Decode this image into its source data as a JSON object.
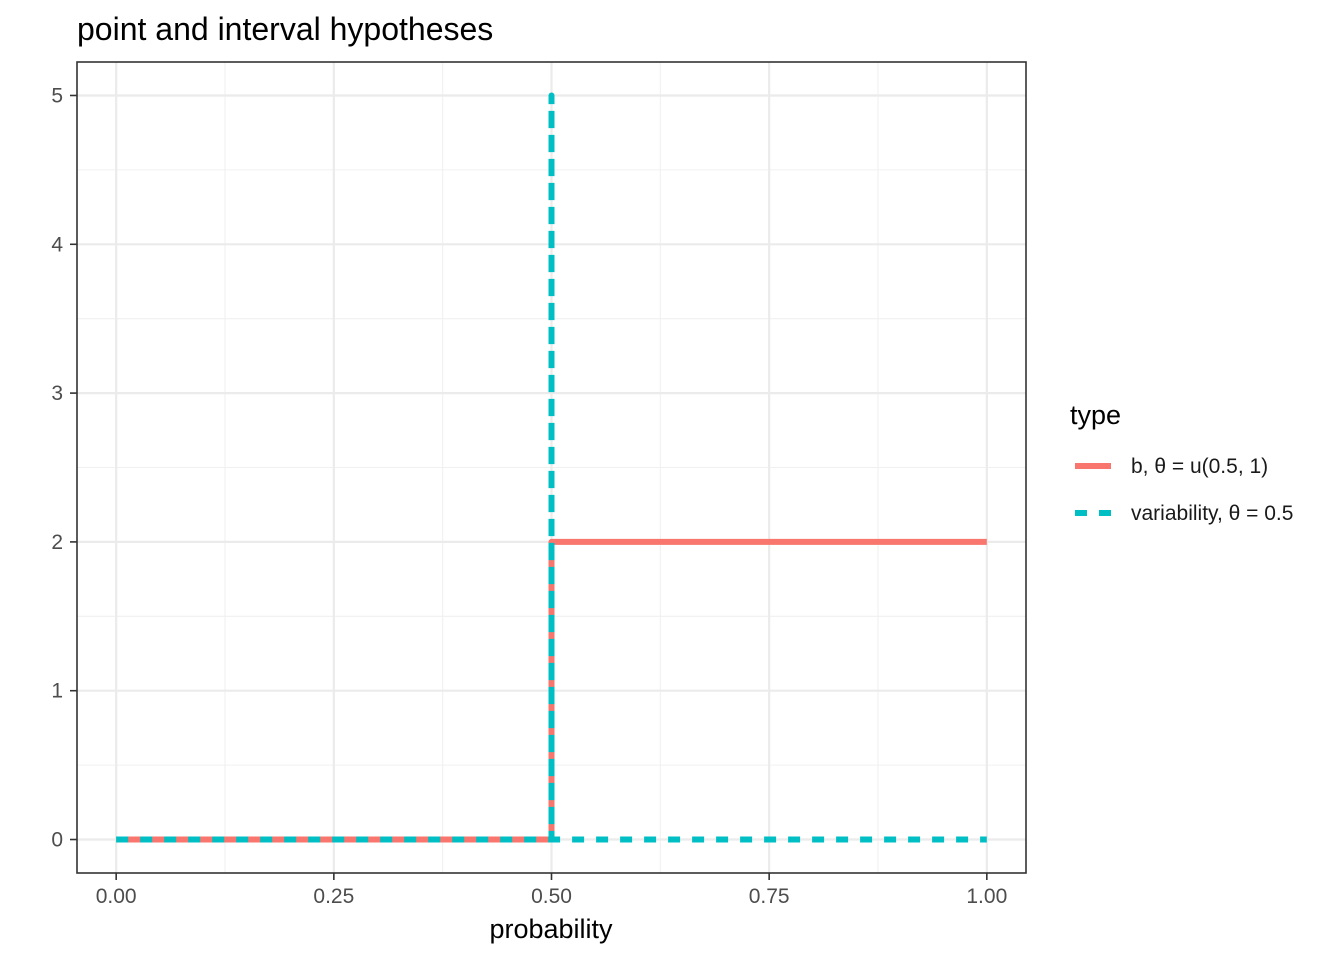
{
  "chart_data": {
    "type": "line",
    "title": "point and interval hypotheses",
    "xlabel": "probability",
    "ylabel": "",
    "xlim": [
      0,
      1
    ],
    "ylim": [
      0,
      5
    ],
    "x_ticks": [
      0,
      0.25,
      0.5,
      0.75,
      1
    ],
    "x_tick_labels": [
      "0.00",
      "0.25",
      "0.50",
      "0.75",
      "1.00"
    ],
    "y_ticks": [
      0,
      1,
      2,
      3,
      4,
      5
    ],
    "y_tick_labels": [
      "0",
      "1",
      "2",
      "3",
      "4",
      "5"
    ],
    "grid": true,
    "legend_title": "type",
    "legend_position": "right",
    "series": [
      {
        "name": "b, θ = u(0.5, 1)",
        "color": "#F8766D",
        "linestyle": "solid",
        "points": [
          [
            0,
            0
          ],
          [
            0.5,
            0
          ],
          [
            0.5,
            2
          ],
          [
            1,
            2
          ]
        ]
      },
      {
        "name": "variability, θ = 0.5",
        "color": "#00BFC4",
        "linestyle": "dashed",
        "points": [
          [
            0,
            0
          ],
          [
            0.5,
            0
          ],
          [
            0.5,
            5
          ],
          [
            0.5,
            0
          ],
          [
            1,
            0
          ]
        ]
      }
    ]
  }
}
